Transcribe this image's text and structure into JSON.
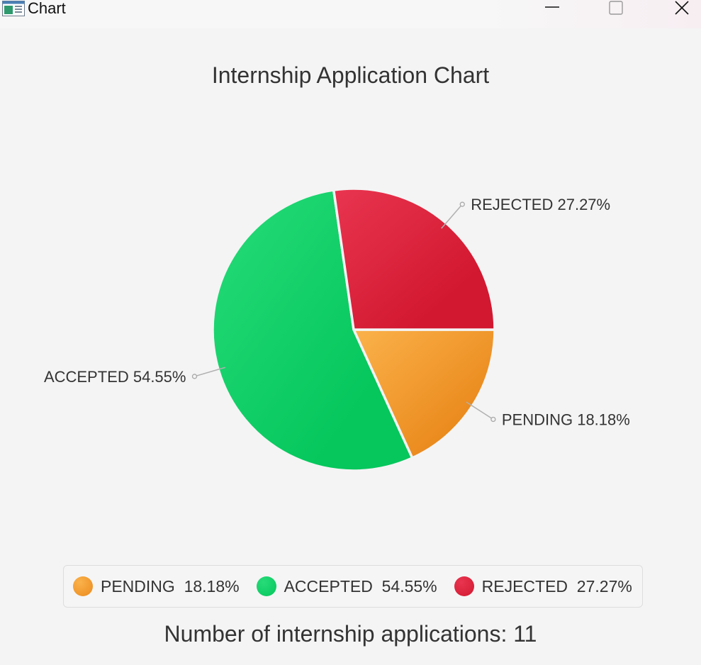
{
  "window": {
    "title": "Chart",
    "controls": {
      "minimize": "minimize",
      "maximize": "maximize",
      "close": "close"
    }
  },
  "chart_data": {
    "type": "pie",
    "title": "Internship Application Chart",
    "slices": [
      {
        "label": "PENDING",
        "percent_text": "18.18%",
        "value": 18.18,
        "color": "#EA8A1D",
        "color_light": "#FBB24B"
      },
      {
        "label": "ACCEPTED",
        "percent_text": "54.55%",
        "value": 54.55,
        "color": "#05C75C",
        "color_light": "#27DB79"
      },
      {
        "label": "REJECTED",
        "percent_text": "27.27%",
        "value": 27.27,
        "color": "#D21830",
        "color_light": "#E93550"
      }
    ],
    "start_angle_deg": 0,
    "direction": "clockwise",
    "legend_placement": "bottom",
    "legend": [
      {
        "label": "PENDING",
        "percent_text": "18.18%",
        "text": "PENDING  18.18%",
        "color": "#EA8A1D"
      },
      {
        "label": "ACCEPTED",
        "percent_text": "54.55%",
        "text": "ACCEPTED  54.55%",
        "color": "#05C75C"
      },
      {
        "label": "REJECTED",
        "percent_text": "27.27%",
        "text": "REJECTED  27.27%",
        "color": "#D21830"
      }
    ]
  },
  "footer": {
    "text": "Number of internship applications: 11"
  }
}
